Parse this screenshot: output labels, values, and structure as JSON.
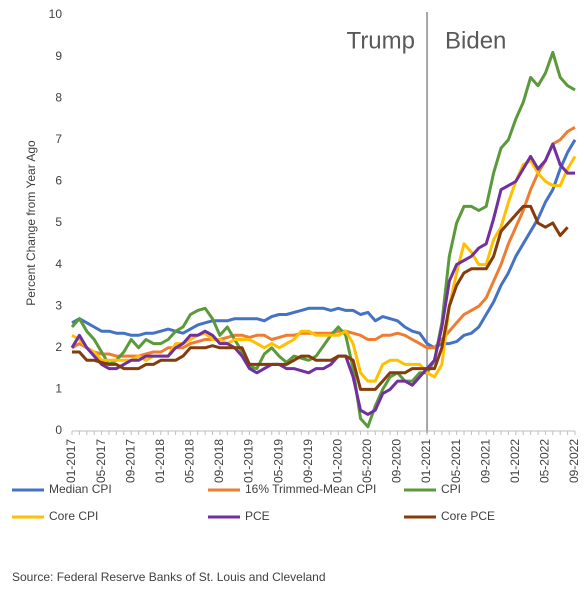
{
  "chart_data": {
    "type": "line",
    "y_axis_label": "Percent Change from Year Ago",
    "annotations": [
      "Trump",
      "Biden"
    ],
    "source": "Source: Federal Reserve Banks of St. Louis and Cleveland",
    "legend": "bottom",
    "grid": false,
    "ylim": [
      0,
      10
    ],
    "yticks": [
      0,
      1,
      2,
      3,
      4,
      5,
      6,
      7,
      8,
      9,
      10
    ],
    "categories": [
      "01-2017",
      null,
      null,
      null,
      "05-2017",
      null,
      null,
      null,
      "09-2017",
      null,
      null,
      null,
      "01-2018",
      null,
      null,
      null,
      "05-2018",
      null,
      null,
      null,
      "09-2018",
      null,
      null,
      null,
      "01-2019",
      null,
      null,
      null,
      "05-2019",
      null,
      null,
      null,
      "09-2019",
      null,
      null,
      null,
      "01-2020",
      null,
      null,
      null,
      "05-2020",
      null,
      null,
      null,
      "09-2020",
      null,
      null,
      null,
      "01-2021",
      null,
      null,
      null,
      "05-2021",
      null,
      null,
      null,
      "09-2021",
      null,
      null,
      null,
      "01-2022",
      null,
      null,
      null,
      "05-2022",
      null,
      null,
      null,
      "09-2022"
    ],
    "series": [
      {
        "name": "Median CPI",
        "color": "#4472c4",
        "values": [
          2.6,
          2.7,
          2.6,
          2.5,
          2.4,
          2.4,
          2.35,
          2.35,
          2.3,
          2.3,
          2.35,
          2.35,
          2.4,
          2.45,
          2.4,
          2.35,
          2.45,
          2.55,
          2.6,
          2.65,
          2.65,
          2.65,
          2.7,
          2.7,
          2.7,
          2.7,
          2.65,
          2.75,
          2.8,
          2.8,
          2.85,
          2.9,
          2.95,
          2.95,
          2.95,
          2.9,
          2.95,
          2.9,
          2.9,
          2.8,
          2.85,
          2.65,
          2.75,
          2.7,
          2.65,
          2.5,
          2.4,
          2.35,
          2.1,
          2.0,
          2.1,
          2.1,
          2.15,
          2.3,
          2.35,
          2.5,
          2.8,
          3.1,
          3.5,
          3.8,
          4.2,
          4.5,
          4.8,
          5.1,
          5.5,
          5.8,
          6.3,
          6.7,
          7.0
        ]
      },
      {
        "name": "16% Trimmed-Mean CPI",
        "color": "#ed7d31",
        "values": [
          2.0,
          2.1,
          2.0,
          1.9,
          1.85,
          1.85,
          1.8,
          1.8,
          1.8,
          1.8,
          1.85,
          1.9,
          1.9,
          2.0,
          2.0,
          2.0,
          2.1,
          2.15,
          2.2,
          2.2,
          2.2,
          2.25,
          2.3,
          2.3,
          2.25,
          2.3,
          2.3,
          2.2,
          2.25,
          2.3,
          2.3,
          2.35,
          2.35,
          2.35,
          2.35,
          2.35,
          2.4,
          2.4,
          2.35,
          2.3,
          2.2,
          2.2,
          2.3,
          2.3,
          2.35,
          2.3,
          2.2,
          2.1,
          2.0,
          2.0,
          2.2,
          2.4,
          2.6,
          2.8,
          2.9,
          3.0,
          3.2,
          3.6,
          4.0,
          4.5,
          4.9,
          5.3,
          5.8,
          6.2,
          6.5,
          6.9,
          7.0,
          7.2,
          7.3
        ]
      },
      {
        "name": "CPI",
        "color": "#5b9a3a",
        "values": [
          2.5,
          2.7,
          2.4,
          2.2,
          1.9,
          1.6,
          1.7,
          1.9,
          2.2,
          2.0,
          2.2,
          2.1,
          2.1,
          2.2,
          2.4,
          2.5,
          2.8,
          2.9,
          2.95,
          2.7,
          2.3,
          2.5,
          2.2,
          1.9,
          1.55,
          1.5,
          1.85,
          2.0,
          1.8,
          1.65,
          1.8,
          1.75,
          1.7,
          1.8,
          2.05,
          2.3,
          2.5,
          2.3,
          1.5,
          0.3,
          0.1,
          0.6,
          1.0,
          1.3,
          1.4,
          1.2,
          1.2,
          1.4,
          1.4,
          1.7,
          2.6,
          4.2,
          5.0,
          5.4,
          5.4,
          5.3,
          5.4,
          6.2,
          6.8,
          7.0,
          7.5,
          7.9,
          8.5,
          8.3,
          8.6,
          9.1,
          8.5,
          8.3,
          8.2
        ]
      },
      {
        "name": "Core CPI",
        "color": "#ffc000",
        "values": [
          2.3,
          2.2,
          2.0,
          1.9,
          1.7,
          1.7,
          1.7,
          1.7,
          1.7,
          1.8,
          1.7,
          1.8,
          1.8,
          1.8,
          2.1,
          2.1,
          2.2,
          2.3,
          2.35,
          2.2,
          2.2,
          2.1,
          2.2,
          2.2,
          2.2,
          2.1,
          2.0,
          2.1,
          2.0,
          2.1,
          2.2,
          2.4,
          2.4,
          2.3,
          2.3,
          2.3,
          2.3,
          2.4,
          2.1,
          1.4,
          1.2,
          1.2,
          1.6,
          1.7,
          1.7,
          1.6,
          1.6,
          1.6,
          1.4,
          1.3,
          1.6,
          3.0,
          3.8,
          4.5,
          4.3,
          4.0,
          4.0,
          4.6,
          4.9,
          5.5,
          6.0,
          6.4,
          6.5,
          6.2,
          6.0,
          5.9,
          5.9,
          6.3,
          6.6
        ]
      },
      {
        "name": "PCE",
        "color": "#7030a0",
        "values": [
          2.0,
          2.3,
          2.0,
          1.8,
          1.6,
          1.5,
          1.5,
          1.6,
          1.7,
          1.7,
          1.8,
          1.8,
          1.8,
          1.8,
          2.0,
          2.1,
          2.3,
          2.3,
          2.4,
          2.3,
          2.1,
          2.1,
          2.0,
          1.8,
          1.5,
          1.4,
          1.5,
          1.6,
          1.6,
          1.5,
          1.5,
          1.45,
          1.4,
          1.5,
          1.5,
          1.6,
          1.8,
          1.8,
          1.3,
          0.5,
          0.4,
          0.5,
          0.9,
          1.0,
          1.2,
          1.2,
          1.1,
          1.3,
          1.5,
          1.7,
          2.5,
          3.6,
          4.0,
          4.1,
          4.2,
          4.4,
          4.5,
          5.1,
          5.8,
          5.9,
          6.0,
          6.3,
          6.6,
          6.3,
          6.5,
          6.9,
          6.4,
          6.2,
          6.2
        ]
      },
      {
        "name": "Core PCE",
        "color": "#843c0c",
        "values": [
          1.9,
          1.9,
          1.7,
          1.7,
          1.65,
          1.6,
          1.6,
          1.5,
          1.5,
          1.5,
          1.6,
          1.6,
          1.7,
          1.7,
          1.7,
          1.8,
          2.0,
          2.0,
          2.0,
          2.05,
          2.0,
          2.0,
          2.0,
          2.0,
          1.6,
          1.6,
          1.6,
          1.6,
          1.6,
          1.6,
          1.7,
          1.8,
          1.8,
          1.7,
          1.7,
          1.7,
          1.8,
          1.8,
          1.7,
          1.0,
          1.0,
          1.0,
          1.2,
          1.4,
          1.4,
          1.4,
          1.5,
          1.5,
          1.5,
          1.5,
          2.0,
          3.0,
          3.5,
          3.8,
          3.9,
          3.9,
          3.9,
          4.2,
          4.8,
          5.0,
          5.2,
          5.4,
          5.4,
          5.0,
          4.9,
          5.0,
          4.7,
          4.9,
          null
        ]
      }
    ]
  }
}
